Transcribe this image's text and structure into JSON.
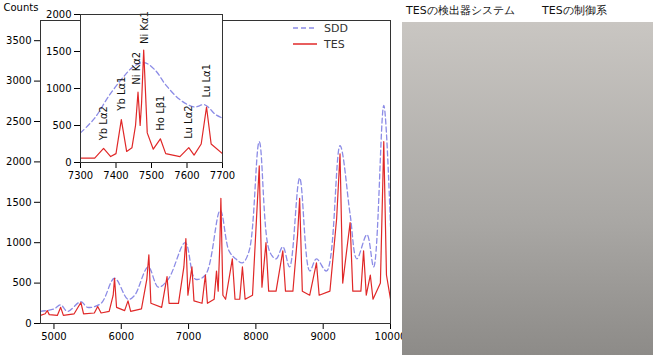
{
  "chart_data": [
    {
      "type": "line",
      "ylabel": "Counts",
      "xlim": [
        4800,
        10000
      ],
      "xticks": [
        5000,
        6000,
        7000,
        8000,
        9000,
        10000
      ],
      "ylim": [
        0,
        3750
      ],
      "yticks": [
        0,
        500,
        1000,
        1500,
        2000,
        2500,
        3000,
        3500
      ],
      "legend": "upper right",
      "series": [
        {
          "name": "SDD",
          "color": "#8c8ce6",
          "line_style": "dashed",
          "x": [
            4800,
            5000,
            5100,
            5200,
            5400,
            5500,
            5700,
            5900,
            6100,
            6200,
            6400,
            6550,
            6700,
            6950,
            7100,
            7250,
            7470,
            7600,
            7700,
            7800,
            7900,
            8050,
            8200,
            8300,
            8400,
            8500,
            8650,
            8800,
            8900,
            9050,
            9250,
            9400,
            9500,
            9650,
            9750,
            9900,
            10000
          ],
          "values": [
            150,
            180,
            230,
            150,
            270,
            200,
            250,
            560,
            300,
            350,
            700,
            450,
            550,
            1000,
            550,
            600,
            1400,
            900,
            800,
            750,
            900,
            2250,
            900,
            800,
            950,
            700,
            1800,
            650,
            800,
            650,
            2200,
            1350,
            800,
            1100,
            700,
            2700,
            1200
          ]
        },
        {
          "name": "TES",
          "color": "#e02828",
          "line_style": "solid",
          "x": [
            4800,
            4870,
            4900,
            4930,
            5050,
            5100,
            5140,
            5300,
            5400,
            5440,
            5600,
            5650,
            5700,
            5820,
            5880,
            5900,
            5930,
            6050,
            6100,
            6140,
            6300,
            6380,
            6410,
            6440,
            6600,
            6680,
            6710,
            6850,
            6930,
            6960,
            6990,
            7050,
            7080,
            7200,
            7250,
            7280,
            7380,
            7415,
            7440,
            7465,
            7480,
            7510,
            7550,
            7650,
            7690,
            7760,
            7800,
            7840,
            7950,
            8000,
            8050,
            8090,
            8150,
            8190,
            8300,
            8400,
            8440,
            8550,
            8620,
            8650,
            8690,
            8800,
            8900,
            8940,
            9100,
            9200,
            9250,
            9290,
            9400,
            9440,
            9560,
            9600,
            9640,
            9700,
            9740,
            9850,
            9900,
            9940,
            10000
          ],
          "values": [
            100,
            120,
            160,
            110,
            100,
            200,
            100,
            120,
            260,
            120,
            130,
            210,
            130,
            150,
            350,
            560,
            200,
            160,
            280,
            150,
            180,
            550,
            850,
            250,
            200,
            580,
            250,
            250,
            700,
            1050,
            350,
            700,
            280,
            250,
            600,
            250,
            300,
            650,
            400,
            1000,
            1550,
            350,
            300,
            800,
            300,
            300,
            700,
            300,
            350,
            1150,
            1950,
            450,
            1000,
            400,
            400,
            900,
            400,
            400,
            1100,
            1550,
            400,
            350,
            750,
            350,
            400,
            1300,
            2100,
            500,
            1250,
            400,
            400,
            900,
            350,
            600,
            300,
            500,
            2250,
            600,
            300
          ]
        }
      ]
    },
    {
      "type": "line",
      "xlim": [
        7300,
        7700
      ],
      "xticks": [
        7300,
        7400,
        7500,
        7600,
        7700
      ],
      "ylim": [
        0,
        2000
      ],
      "yticks": [
        0,
        500,
        1000,
        1500,
        2000
      ],
      "series": [
        {
          "name": "SDD",
          "color": "#8c8ce6",
          "line_style": "dashed",
          "x": [
            7300,
            7340,
            7380,
            7420,
            7450,
            7480,
            7510,
            7540,
            7580,
            7620,
            7650,
            7680,
            7700
          ],
          "values": [
            400,
            600,
            900,
            1150,
            1300,
            1350,
            1250,
            1050,
            850,
            750,
            780,
            650,
            600
          ]
        },
        {
          "name": "TES",
          "color": "#e02828",
          "line_style": "solid",
          "x": [
            7300,
            7340,
            7365,
            7385,
            7400,
            7415,
            7430,
            7445,
            7455,
            7462,
            7468,
            7472,
            7478,
            7488,
            7505,
            7525,
            7540,
            7580,
            7605,
            7620,
            7640,
            7655,
            7668,
            7700
          ],
          "values": [
            60,
            60,
            190,
            80,
            120,
            580,
            150,
            200,
            500,
            950,
            500,
            800,
            1520,
            400,
            180,
            320,
            120,
            80,
            200,
            100,
            250,
            750,
            250,
            120
          ]
        }
      ],
      "annotations": [
        {
          "text": "Yb Lα2",
          "x": 7365,
          "y": 300
        },
        {
          "text": "Yb Lα1",
          "x": 7415,
          "y": 700
        },
        {
          "text": "Ni Kα2",
          "x": 7458,
          "y": 1050
        },
        {
          "text": "Ni Kα1",
          "x": 7480,
          "y": 1600
        },
        {
          "text": "Ho Lβ1",
          "x": 7525,
          "y": 430
        },
        {
          "text": "Lu Lα2",
          "x": 7605,
          "y": 320
        },
        {
          "text": "Lu Lα1",
          "x": 7655,
          "y": 880
        }
      ]
    }
  ],
  "photo": {
    "labels": [
      "TESの検出器システム",
      "TESの制御系"
    ]
  }
}
